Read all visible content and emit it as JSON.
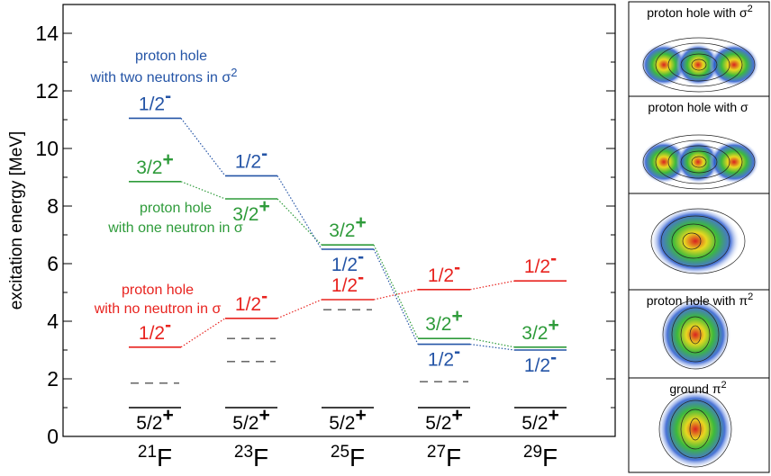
{
  "chart_data": {
    "type": "level-scheme",
    "ylabel": "excitation energy [MeV]",
    "ylim": [
      0,
      15
    ],
    "yticks": [
      0,
      2,
      4,
      6,
      8,
      10,
      12,
      14
    ],
    "yminorticks": [
      1,
      3,
      5,
      7,
      9,
      11,
      13
    ],
    "categories": [
      {
        "mass": "21",
        "symbol": "F"
      },
      {
        "mass": "23",
        "symbol": "F"
      },
      {
        "mass": "25",
        "symbol": "F"
      },
      {
        "mass": "27",
        "symbol": "F"
      },
      {
        "mass": "29",
        "symbol": "F"
      }
    ],
    "series": [
      {
        "label": {
          "base": "5/2",
          "sup": "+"
        },
        "color": "#000000",
        "values": [
          1,
          1,
          1,
          1,
          1
        ]
      },
      {
        "label": {
          "base": "1/2",
          "sup": "-"
        },
        "color": "#e8231f",
        "connector": "dotted",
        "annotation": [
          "proton hole",
          "with no neutron in σ"
        ],
        "values": [
          3.1,
          4.1,
          4.75,
          5.1,
          5.4
        ]
      },
      {
        "label": {
          "base": "3/2",
          "sup": "+"
        },
        "color": "#2e9b3a",
        "connector": "dotted",
        "annotation": [
          "proton hole",
          "with one neutron in σ"
        ],
        "values": [
          8.85,
          8.25,
          6.65,
          3.4,
          3.1
        ]
      },
      {
        "label": {
          "base": "1/2",
          "sup": "-"
        },
        "color": "#2454a6",
        "connector": "dotted",
        "annotation": [
          "proton hole",
          "with two neutrons in σ"
        ],
        "annotation_sup": "2",
        "values": [
          11.05,
          9.05,
          6.5,
          3.2,
          3.0
        ]
      }
    ],
    "other_levels": {
      "color": "#555555",
      "values": [
        [
          1.85
        ],
        [
          3.4,
          2.6
        ],
        [
          4.4
        ],
        [
          1.9
        ],
        []
      ]
    }
  },
  "side_panel": {
    "captions": [
      {
        "text": "proton hole with σ",
        "sup": "2"
      },
      {
        "text": "proton hole with σ"
      },
      {
        "text": "proton hole with π",
        "sup": "2"
      },
      {
        "text": "ground π",
        "sup": "2"
      }
    ]
  }
}
